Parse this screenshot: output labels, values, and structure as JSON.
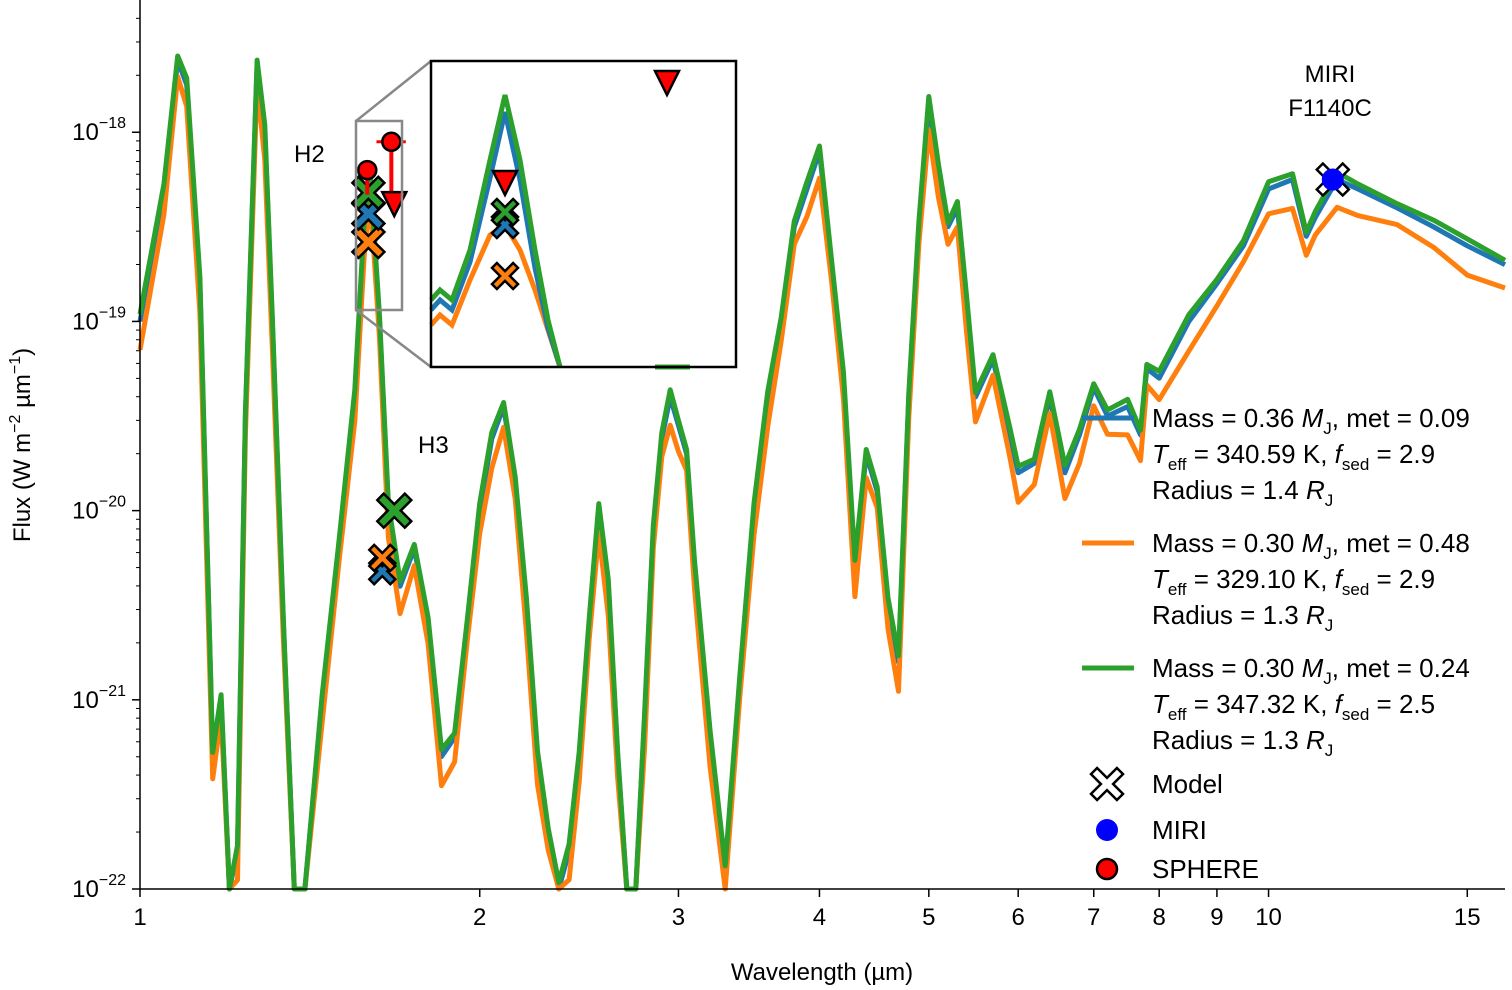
{
  "chart_data": {
    "type": "line",
    "xlabel": "Wavelength (µm)",
    "ylabel_main": "Flux (W m",
    "ylabel_sup1": "−2",
    "ylabel_mid": " µm",
    "ylabel_sup2": "−1",
    "ylabel_end": ")",
    "xscale": "log",
    "yscale": "log",
    "xlim": [
      1.0,
      16.2
    ],
    "ylim": [
      1e-22,
      5e-18
    ],
    "x_ticks": [
      {
        "value": 1,
        "label": "1"
      },
      {
        "value": 2,
        "label": "2"
      },
      {
        "value": 3,
        "label": "3"
      },
      {
        "value": 4,
        "label": "4"
      },
      {
        "value": 5,
        "label": "5"
      },
      {
        "value": 6,
        "label": "6"
      },
      {
        "value": 7,
        "label": "7"
      },
      {
        "value": 8,
        "label": "8"
      },
      {
        "value": 9,
        "label": "9"
      },
      {
        "value": 10,
        "label": "10"
      },
      {
        "value": 15,
        "label": "15"
      }
    ],
    "y_ticks": [
      {
        "exp": -22,
        "base": "10",
        "sup": "−22"
      },
      {
        "exp": -21,
        "base": "10",
        "sup": "−21"
      },
      {
        "exp": -20,
        "base": "10",
        "sup": "−20"
      },
      {
        "exp": -19,
        "base": "10",
        "sup": "−19"
      },
      {
        "exp": -18,
        "base": "10",
        "sup": "−18"
      }
    ],
    "series": [
      {
        "color": "#1f77b4",
        "legend_lines": [
          {
            "a": "Mass = 0.36 ",
            "sym": "M",
            "sub": "J",
            "b": ", met = 0.09"
          },
          {
            "a": "",
            "sym": "T",
            "sub": "eff",
            "b": " = 340.59 K, ",
            "sym2": "f",
            "sub2": "sed",
            "c": " = 2.9"
          },
          {
            "a": "Radius = 1.4 ",
            "sym": "R",
            "sub": "J",
            "b": ""
          }
        ],
        "offset": 0.0
      },
      {
        "color": "#ff7f0e",
        "legend_lines": [
          {
            "a": "Mass = 0.30 ",
            "sym": "M",
            "sub": "J",
            "b": ", met = 0.48"
          },
          {
            "a": "",
            "sym": "T",
            "sub": "eff",
            "b": " = 329.10 K, ",
            "sym2": "f",
            "sub2": "sed",
            "c": " = 2.9"
          },
          {
            "a": "Radius = 1.3 ",
            "sym": "R",
            "sub": "J",
            "b": ""
          }
        ],
        "offset": -0.12
      },
      {
        "color": "#2ca02c",
        "legend_lines": [
          {
            "a": "Mass = 0.30 ",
            "sym": "M",
            "sub": "J",
            "b": ", met = 0.24"
          },
          {
            "a": "",
            "sym": "T",
            "sub": "eff",
            "b": " = 347.32 K, ",
            "sym2": "f",
            "sub2": "sed",
            "c": " = 2.5"
          },
          {
            "a": "Radius = 1.3 ",
            "sym": "R",
            "sub": "J",
            "b": ""
          }
        ],
        "offset": 0.03
      }
    ],
    "spectrum_base": [
      [
        1.0,
        -19.0
      ],
      [
        1.05,
        -18.3
      ],
      [
        1.08,
        -17.62
      ],
      [
        1.1,
        -17.75
      ],
      [
        1.13,
        -18.8
      ],
      [
        1.16,
        -21.3
      ],
      [
        1.18,
        -21.0
      ],
      [
        1.2,
        -22.3
      ],
      [
        1.22,
        -21.8
      ],
      [
        1.24,
        -19.5
      ],
      [
        1.27,
        -17.65
      ],
      [
        1.29,
        -18.0
      ],
      [
        1.31,
        -19.0
      ],
      [
        1.34,
        -20.6
      ],
      [
        1.37,
        -22.5
      ],
      [
        1.4,
        -22.6
      ],
      [
        1.45,
        -21.0
      ],
      [
        1.5,
        -20.2
      ],
      [
        1.55,
        -19.4
      ],
      [
        1.58,
        -18.5
      ],
      [
        1.6,
        -18.25
      ],
      [
        1.63,
        -19.0
      ],
      [
        1.66,
        -20.0
      ],
      [
        1.7,
        -20.4
      ],
      [
        1.75,
        -20.2
      ],
      [
        1.8,
        -20.6
      ],
      [
        1.85,
        -21.3
      ],
      [
        1.9,
        -21.2
      ],
      [
        1.95,
        -20.6
      ],
      [
        2.0,
        -20.0
      ],
      [
        2.05,
        -19.62
      ],
      [
        2.1,
        -19.45
      ],
      [
        2.15,
        -19.85
      ],
      [
        2.2,
        -20.5
      ],
      [
        2.25,
        -21.3
      ],
      [
        2.3,
        -21.7
      ],
      [
        2.35,
        -22.0
      ],
      [
        2.4,
        -21.8
      ],
      [
        2.45,
        -21.3
      ],
      [
        2.5,
        -20.6
      ],
      [
        2.55,
        -20.0
      ],
      [
        2.6,
        -20.4
      ],
      [
        2.65,
        -21.3
      ],
      [
        2.7,
        -22.4
      ],
      [
        2.75,
        -22.2
      ],
      [
        2.8,
        -21.1
      ],
      [
        2.85,
        -20.1
      ],
      [
        2.9,
        -19.62
      ],
      [
        2.95,
        -19.4
      ],
      [
        3.0,
        -19.55
      ],
      [
        3.05,
        -19.7
      ],
      [
        3.1,
        -20.3
      ],
      [
        3.2,
        -21.2
      ],
      [
        3.3,
        -21.9
      ],
      [
        3.4,
        -20.9
      ],
      [
        3.5,
        -20.0
      ],
      [
        3.6,
        -19.4
      ],
      [
        3.7,
        -19.0
      ],
      [
        3.8,
        -18.5
      ],
      [
        3.9,
        -18.3
      ],
      [
        4.0,
        -18.1
      ],
      [
        4.1,
        -18.7
      ],
      [
        4.2,
        -19.3
      ],
      [
        4.3,
        -20.3
      ],
      [
        4.4,
        -19.7
      ],
      [
        4.5,
        -19.9
      ],
      [
        4.6,
        -20.5
      ],
      [
        4.7,
        -20.8
      ],
      [
        4.8,
        -19.4
      ],
      [
        4.9,
        -18.5
      ],
      [
        5.0,
        -17.85
      ],
      [
        5.1,
        -18.2
      ],
      [
        5.2,
        -18.5
      ],
      [
        5.3,
        -18.4
      ],
      [
        5.4,
        -18.9
      ],
      [
        5.5,
        -19.4
      ],
      [
        5.7,
        -19.2
      ],
      [
        5.9,
        -19.6
      ],
      [
        6.0,
        -19.8
      ],
      [
        6.2,
        -19.75
      ],
      [
        6.4,
        -19.4
      ],
      [
        6.6,
        -19.8
      ],
      [
        6.8,
        -19.6
      ],
      [
        7.0,
        -19.35
      ],
      [
        7.2,
        -19.5
      ],
      [
        7.5,
        -19.45
      ],
      [
        7.7,
        -19.6
      ],
      [
        7.8,
        -19.25
      ],
      [
        8.0,
        -19.3
      ],
      [
        8.5,
        -19.0
      ],
      [
        9.0,
        -18.8
      ],
      [
        9.5,
        -18.6
      ],
      [
        10.0,
        -18.3
      ],
      [
        10.5,
        -18.25
      ],
      [
        10.8,
        -18.55
      ],
      [
        11.0,
        -18.45
      ],
      [
        11.5,
        -18.25
      ],
      [
        12.0,
        -18.3
      ],
      [
        13.0,
        -18.4
      ],
      [
        14.0,
        -18.5
      ],
      [
        15.0,
        -18.6
      ],
      [
        16.2,
        -18.7
      ]
    ],
    "model_points": [
      {
        "label": "H2",
        "x": 1.6,
        "y": -18.3
      },
      {
        "label": "H3",
        "x": 1.68,
        "y": -20.0
      },
      {
        "label": "MIRI F1140C",
        "x": 11.4,
        "y": -18.25
      }
    ],
    "miri_point": {
      "x": 11.4,
      "y": -18.25,
      "color": "#0000ff"
    },
    "sphere_points": [
      {
        "x": 1.59,
        "y": -18.2
      },
      {
        "x": 1.67,
        "y": -18.05
      },
      {
        "x": 1.7,
        "y": -18.4
      }
    ],
    "annotations": {
      "h2": "H2",
      "h3": "H3",
      "miri_line1": "MIRI",
      "miri_line2": "F1140C"
    },
    "legend_markers": {
      "model": "Model",
      "miri": "MIRI",
      "sphere": "SPHERE"
    },
    "colors": {
      "blue": "#1f77b4",
      "orange": "#ff7f0e",
      "green": "#2ca02c",
      "miri": "#0000ff",
      "sphere": "#ff0000"
    }
  }
}
